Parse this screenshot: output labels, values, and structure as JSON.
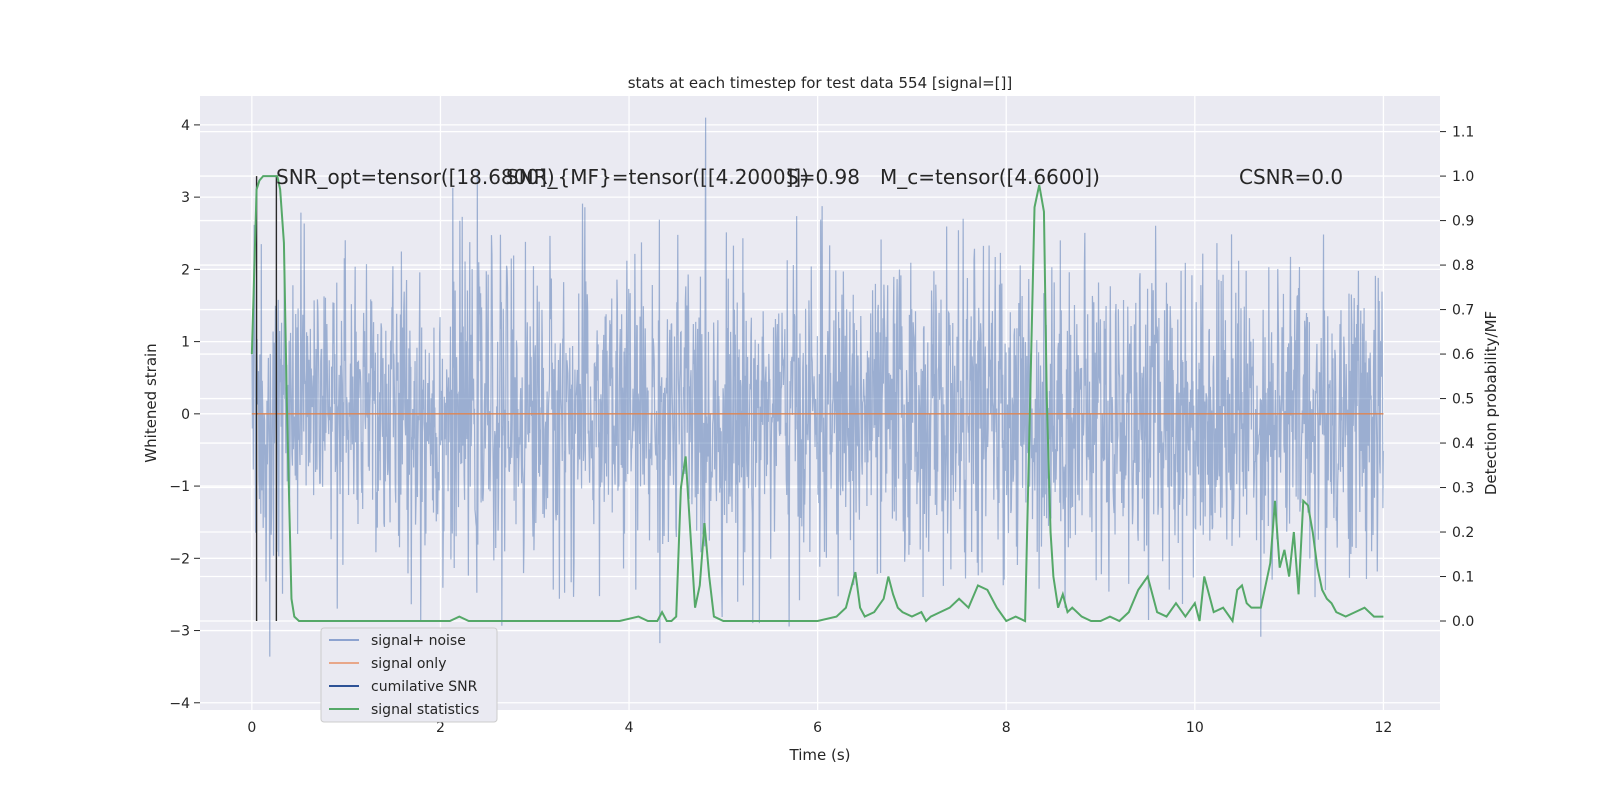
{
  "chart_data": {
    "type": "line",
    "title": "stats at each timestep for test data 554 [signal=[]]",
    "xlabel": "Time (s)",
    "ylabel_left": "Whitened strain",
    "ylabel_right": "Detection probability/MF",
    "xlim": [
      -0.55,
      12.6
    ],
    "ylim_left": [
      -4.1,
      4.4
    ],
    "ylim_right": [
      -0.2,
      1.18
    ],
    "xticks": [
      0,
      2,
      4,
      6,
      8,
      10,
      12
    ],
    "yticks_left": [
      -4,
      -3,
      -2,
      -1,
      0,
      1,
      2,
      3,
      4
    ],
    "yticks_right": [
      0.0,
      0.1,
      0.2,
      0.3,
      0.4,
      0.5,
      0.6,
      0.7,
      0.8,
      0.9,
      1.0,
      1.1
    ],
    "grid": true,
    "legend_position": "bottom-left",
    "legend": [
      "signal+ noise",
      "signal only",
      "cumilative SNR",
      "signal statistics"
    ],
    "annotations": [
      "SNR_opt=tensor([18.6800])",
      "SNR_{MF}=tensor([[4.2000]])",
      "S=0.98",
      "M_c=tensor([4.6600])",
      "CSNR=0.0"
    ],
    "cumulative_snr_markers_x": [
      0.05,
      0.26
    ],
    "series": [
      {
        "name": "signal+ noise",
        "color": "#4c72b0",
        "axis": "left",
        "description": "whitened strain time series, roughly Gaussian noise spanning about -3.7 to 4.1",
        "x_range": [
          0,
          12
        ],
        "envelope": [
          -3.7,
          4.1
        ]
      },
      {
        "name": "signal only",
        "color": "#dd8452",
        "axis": "left",
        "x": [
          0,
          12
        ],
        "y": [
          0,
          0
        ]
      },
      {
        "name": "signal statistics",
        "color": "#55a868",
        "axis": "right",
        "x": [
          0.0,
          0.05,
          0.08,
          0.12,
          0.2,
          0.27,
          0.3,
          0.34,
          0.37,
          0.42,
          0.45,
          0.5,
          0.6,
          0.8,
          1.0,
          1.2,
          1.4,
          1.6,
          1.8,
          2.0,
          2.1,
          2.2,
          2.3,
          2.4,
          2.5,
          2.7,
          2.9,
          3.1,
          3.3,
          3.5,
          3.7,
          3.9,
          4.1,
          4.2,
          4.3,
          4.35,
          4.4,
          4.45,
          4.5,
          4.55,
          4.6,
          4.65,
          4.7,
          4.75,
          4.8,
          4.85,
          4.9,
          5.0,
          5.2,
          5.4,
          5.6,
          5.8,
          6.0,
          6.2,
          6.3,
          6.35,
          6.4,
          6.45,
          6.5,
          6.6,
          6.7,
          6.75,
          6.8,
          6.85,
          6.9,
          7.0,
          7.1,
          7.15,
          7.2,
          7.3,
          7.4,
          7.5,
          7.6,
          7.7,
          7.8,
          7.9,
          8.0,
          8.1,
          8.2,
          8.3,
          8.35,
          8.4,
          8.43,
          8.47,
          8.5,
          8.55,
          8.6,
          8.65,
          8.7,
          8.8,
          8.9,
          9.0,
          9.1,
          9.2,
          9.3,
          9.4,
          9.5,
          9.6,
          9.7,
          9.8,
          9.9,
          10.0,
          10.05,
          10.1,
          10.2,
          10.3,
          10.4,
          10.45,
          10.5,
          10.55,
          10.6,
          10.7,
          10.8,
          10.85,
          10.9,
          10.95,
          11.0,
          11.05,
          11.1,
          11.15,
          11.2,
          11.25,
          11.3,
          11.35,
          11.4,
          11.45,
          11.5,
          11.6,
          11.7,
          11.8,
          11.9,
          12.0
        ],
        "y": [
          0.6,
          0.97,
          0.99,
          1.0,
          1.0,
          1.0,
          0.97,
          0.85,
          0.5,
          0.05,
          0.01,
          0.0,
          0.0,
          0.0,
          0.0,
          0.0,
          0.0,
          0.0,
          0.0,
          0.0,
          0.0,
          0.01,
          0.0,
          0.0,
          0.0,
          0.0,
          0.0,
          0.0,
          0.0,
          0.0,
          0.0,
          0.0,
          0.01,
          0.0,
          0.0,
          0.02,
          0.0,
          0.0,
          0.01,
          0.3,
          0.37,
          0.2,
          0.03,
          0.08,
          0.22,
          0.1,
          0.01,
          0.0,
          0.0,
          0.0,
          0.0,
          0.0,
          0.0,
          0.01,
          0.03,
          0.07,
          0.11,
          0.03,
          0.01,
          0.02,
          0.05,
          0.1,
          0.06,
          0.03,
          0.02,
          0.01,
          0.02,
          0.0,
          0.01,
          0.02,
          0.03,
          0.05,
          0.03,
          0.08,
          0.07,
          0.03,
          0.0,
          0.01,
          0.0,
          0.93,
          0.98,
          0.92,
          0.5,
          0.2,
          0.1,
          0.03,
          0.06,
          0.02,
          0.03,
          0.01,
          0.0,
          0.0,
          0.01,
          0.0,
          0.02,
          0.07,
          0.1,
          0.02,
          0.01,
          0.04,
          0.01,
          0.04,
          0.0,
          0.1,
          0.02,
          0.03,
          0.0,
          0.07,
          0.08,
          0.04,
          0.03,
          0.03,
          0.13,
          0.27,
          0.12,
          0.16,
          0.1,
          0.2,
          0.06,
          0.27,
          0.26,
          0.2,
          0.12,
          0.07,
          0.05,
          0.04,
          0.02,
          0.01,
          0.02,
          0.03,
          0.01,
          0.01
        ]
      },
      {
        "name": "cumilative SNR",
        "color": "#2d3e8c",
        "axis": "left",
        "x": [],
        "y": []
      }
    ]
  }
}
